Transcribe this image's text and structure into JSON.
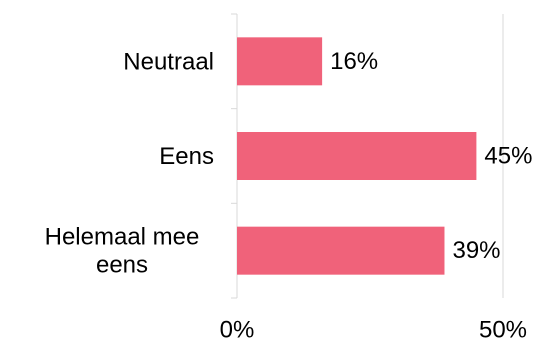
{
  "chart_data": {
    "type": "bar",
    "orientation": "horizontal",
    "categories": [
      [
        "Neutraal"
      ],
      [
        "Eens"
      ],
      [
        "Helemaal mee",
        "eens"
      ]
    ],
    "values": [
      16,
      45,
      39
    ],
    "value_labels": [
      "16%",
      "45%",
      "39%"
    ],
    "xlim": [
      0,
      50
    ],
    "ticks": [
      0,
      50
    ],
    "tick_labels": [
      "0%",
      "50%"
    ],
    "grid": "vertical",
    "legend": "none",
    "colors": {
      "bar": "#F0627A",
      "grid": "#D9D9D9",
      "axis": "#D9D9D9",
      "text": "#000000"
    }
  }
}
